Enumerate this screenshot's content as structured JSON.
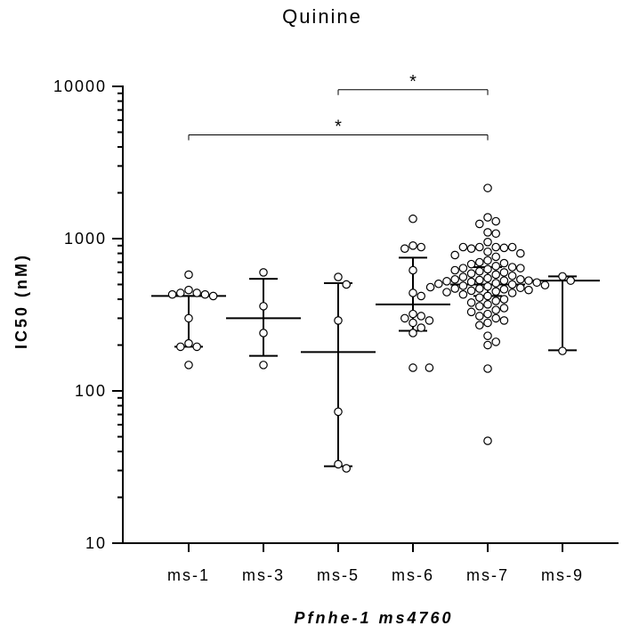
{
  "chart_data": {
    "type": "scatter",
    "title": "Quinine",
    "xlabel": "Pfnhe-1 ms4760",
    "ylabel": "IC50 (nM)",
    "yscale": "log",
    "ylim": [
      10,
      10000
    ],
    "yticks": [
      {
        "value": 10,
        "label": "10"
      },
      {
        "value": 100,
        "label": "100"
      },
      {
        "value": 1000,
        "label": "1000"
      },
      {
        "value": 10000,
        "label": "10000"
      }
    ],
    "categories": [
      "ms-1",
      "ms-3",
      "ms-5",
      "ms-6",
      "ms-7",
      "ms-9"
    ],
    "series": [
      {
        "category": "ms-1",
        "values": [
          580,
          460,
          440,
          440,
          430,
          430,
          420,
          300,
          205,
          195,
          195,
          148
        ],
        "median": 420,
        "lower": 195,
        "upper": 420
      },
      {
        "category": "ms-3",
        "values": [
          600,
          360,
          240,
          148
        ],
        "median": 300,
        "lower": 170,
        "upper": 545
      },
      {
        "category": "ms-5",
        "values": [
          560,
          500,
          290,
          73,
          33,
          31
        ],
        "median": 180,
        "lower": 32,
        "upper": 510
      },
      {
        "category": "ms-6",
        "values": [
          1350,
          900,
          880,
          860,
          620,
          440,
          420,
          320,
          310,
          300,
          290,
          280,
          260,
          240,
          142,
          142
        ],
        "median": 370,
        "lower": 248,
        "upper": 750
      },
      {
        "category": "ms-7",
        "values": [
          2150,
          1380,
          1300,
          1250,
          1100,
          1080,
          950,
          880,
          880,
          880,
          880,
          870,
          860,
          820,
          800,
          780,
          760,
          720,
          700,
          690,
          680,
          660,
          650,
          640,
          640,
          630,
          620,
          610,
          600,
          590,
          580,
          570,
          560,
          550,
          540,
          540,
          535,
          530,
          530,
          525,
          520,
          515,
          510,
          505,
          500,
          495,
          490,
          485,
          480,
          475,
          470,
          470,
          465,
          460,
          455,
          450,
          445,
          440,
          430,
          420,
          410,
          400,
          390,
          380,
          370,
          360,
          350,
          340,
          330,
          320,
          310,
          300,
          290,
          280,
          270,
          230,
          210,
          200,
          140,
          47
        ],
        "median": 500,
        "lower": 420,
        "upper": 650
      },
      {
        "category": "ms-9",
        "values": [
          565,
          530,
          183
        ],
        "median": 530,
        "lower": 185,
        "upper": 565
      }
    ],
    "significance": [
      {
        "from": "ms-5",
        "to": "ms-7",
        "label": "*",
        "y": 9500
      },
      {
        "from": "ms-1",
        "to": "ms-7",
        "label": "*",
        "y": 4800
      }
    ]
  }
}
